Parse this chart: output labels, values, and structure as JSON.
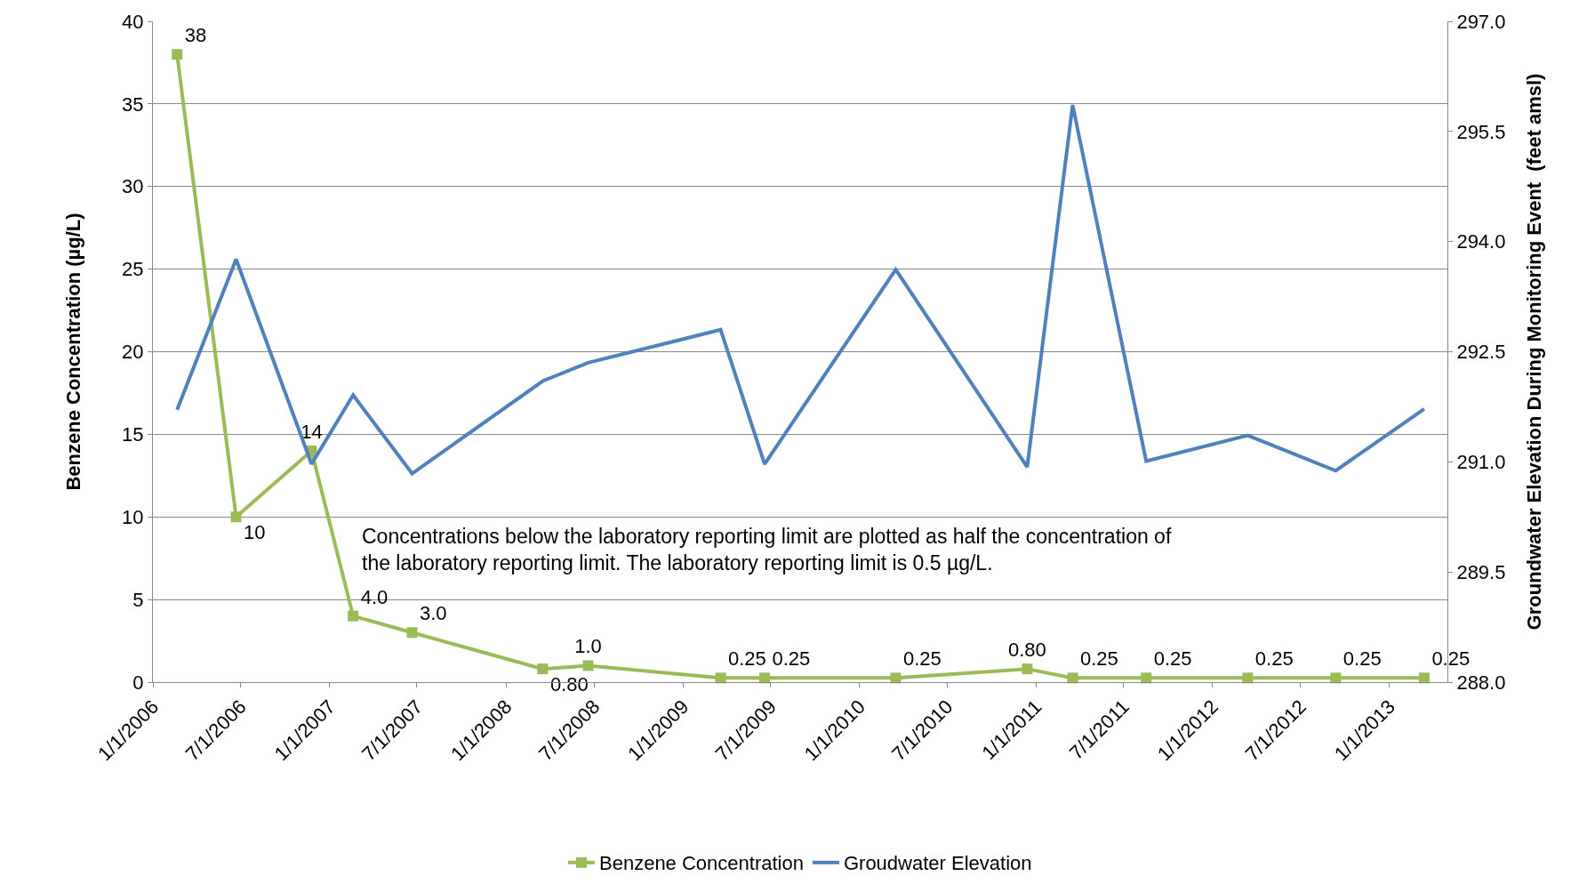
{
  "chart_data": {
    "type": "line",
    "ylabel": "Benzene Concentration (µg/L)",
    "y2label": "Groundwater Elevation During Monitoring Event  (feet amsl)",
    "series": [
      {
        "name": "Benzene Concentration",
        "color": "#9bbb59",
        "marker": "square",
        "x": [
          "2006-02-20",
          "2006-06-22",
          "2006-11-25",
          "2007-02-19",
          "2007-06-21",
          "2008-03-17",
          "2008-06-19",
          "2009-03-20",
          "2009-06-19",
          "2010-03-17",
          "2010-12-14",
          "2011-03-18",
          "2011-08-17",
          "2012-03-14",
          "2012-09-12",
          "2013-03-14"
        ],
        "values": [
          38,
          10,
          14,
          4.0,
          3.0,
          0.8,
          1.0,
          0.25,
          0.25,
          0.25,
          0.8,
          0.25,
          0.25,
          0.25,
          0.25,
          0.25
        ],
        "value_labels": [
          "38",
          "10",
          "14",
          "4.0",
          "3.0",
          "0.80",
          "1.0",
          "0.25",
          "0.25",
          "0.25",
          "0.80",
          "0.25",
          "0.25",
          "0.25",
          "0.25",
          "0.25"
        ]
      },
      {
        "name": "Groudwater Elevation",
        "color": "#4f81bd",
        "marker": "none",
        "axis": "y2",
        "x": [
          "2006-02-20",
          "2006-06-22",
          "2006-11-25",
          "2007-02-19",
          "2007-06-21",
          "2008-03-17",
          "2008-06-19",
          "2009-03-20",
          "2009-06-19",
          "2010-03-17",
          "2010-12-14",
          "2011-03-18",
          "2011-08-17",
          "2012-03-14",
          "2012-09-12",
          "2013-03-14"
        ],
        "values": [
          291.71,
          293.76,
          290.97,
          291.91,
          290.84,
          292.1,
          292.35,
          292.8,
          290.97,
          293.62,
          290.93,
          295.86,
          291.01,
          291.36,
          290.88,
          291.72
        ]
      }
    ],
    "xlim": [
      "2006-01-01",
      "2013-05-01"
    ],
    "xticks": [
      {
        "value": "2006-01-01",
        "label": "1/1/2006"
      },
      {
        "value": "2006-07-01",
        "label": "7/1/2006"
      },
      {
        "value": "2007-01-01",
        "label": "1/1/2007"
      },
      {
        "value": "2007-07-01",
        "label": "7/1/2007"
      },
      {
        "value": "2008-01-01",
        "label": "1/1/2008"
      },
      {
        "value": "2008-07-01",
        "label": "7/1/2008"
      },
      {
        "value": "2009-01-01",
        "label": "1/1/2009"
      },
      {
        "value": "2009-07-01",
        "label": "7/1/2009"
      },
      {
        "value": "2010-01-01",
        "label": "1/1/2010"
      },
      {
        "value": "2010-07-01",
        "label": "7/1/2010"
      },
      {
        "value": "2011-01-01",
        "label": "1/1/2011"
      },
      {
        "value": "2011-07-01",
        "label": "7/1/2011"
      },
      {
        "value": "2012-01-01",
        "label": "1/1/2012"
      },
      {
        "value": "2012-07-01",
        "label": "7/1/2012"
      },
      {
        "value": "2013-01-01",
        "label": "1/1/2013"
      }
    ],
    "ylim": [
      0,
      40
    ],
    "yticks": [
      0,
      5,
      10,
      15,
      20,
      25,
      30,
      35,
      40
    ],
    "y2lim": [
      288,
      297
    ],
    "y2ticks": [
      {
        "value": 288,
        "label": "288.0"
      },
      {
        "value": 289.5,
        "label": "289.5"
      },
      {
        "value": 291,
        "label": "291.0"
      },
      {
        "value": 292.5,
        "label": "292.5"
      },
      {
        "value": 294,
        "label": "294.0"
      },
      {
        "value": 295.5,
        "label": "295.5"
      },
      {
        "value": 297,
        "label": "297.0"
      }
    ],
    "annotations": [
      "Concentrations below the laboratory reporting limit are plotted as half the concentration of the laboratory reporting limit. The laboratory reporting limit is 0.5 µg/L."
    ],
    "grid": "y",
    "legend": "bottom",
    "line_style": "solid"
  }
}
